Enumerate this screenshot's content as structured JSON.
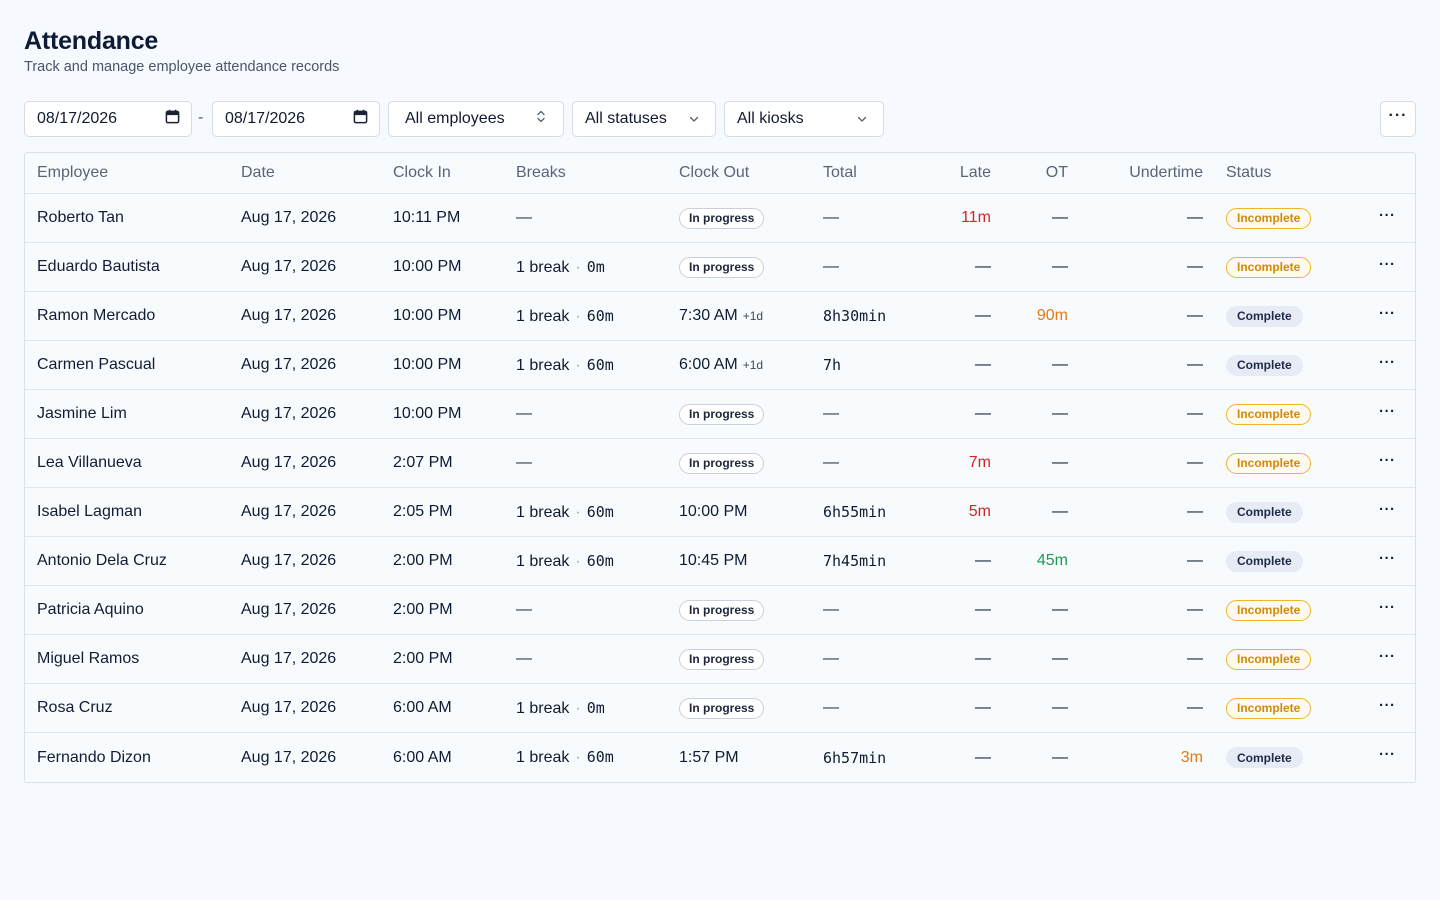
{
  "header": {
    "title": "Attendance",
    "subtitle": "Track and manage employee attendance records"
  },
  "filters": {
    "date_from": "08/17/2026",
    "date_separator": "-",
    "date_to": "08/17/2026",
    "employees": "All employees",
    "statuses": "All statuses",
    "kiosks": "All kiosks",
    "more_label": "···"
  },
  "table": {
    "columns": [
      "Employee",
      "Date",
      "Clock In",
      "Breaks",
      "Clock Out",
      "Total",
      "Late",
      "OT",
      "Undertime",
      "Status"
    ],
    "rows": [
      {
        "employee": "Roberto Tan",
        "date": "Aug 17, 2026",
        "clock_in": "10:11 PM",
        "breaks": null,
        "clock_out": null,
        "total": "—",
        "late": "11m",
        "late_color": "red",
        "ot": "—",
        "ot_color": "",
        "undertime": "—",
        "undertime_color": "",
        "status": "Incomplete"
      },
      {
        "employee": "Eduardo Bautista",
        "date": "Aug 17, 2026",
        "clock_in": "10:00 PM",
        "breaks": {
          "count": "1 break",
          "duration": "0m"
        },
        "clock_out": null,
        "total": "—",
        "late": "—",
        "late_color": "",
        "ot": "—",
        "ot_color": "",
        "undertime": "—",
        "undertime_color": "",
        "status": "Incomplete"
      },
      {
        "employee": "Ramon Mercado",
        "date": "Aug 17, 2026",
        "clock_in": "10:00 PM",
        "breaks": {
          "count": "1 break",
          "duration": "60m"
        },
        "clock_out": {
          "time": "7:30 AM",
          "next_day": "+1d"
        },
        "total": "8h30min",
        "late": "—",
        "late_color": "",
        "ot": "90m",
        "ot_color": "orange",
        "undertime": "—",
        "undertime_color": "",
        "status": "Complete"
      },
      {
        "employee": "Carmen Pascual",
        "date": "Aug 17, 2026",
        "clock_in": "10:00 PM",
        "breaks": {
          "count": "1 break",
          "duration": "60m"
        },
        "clock_out": {
          "time": "6:00 AM",
          "next_day": "+1d"
        },
        "total": "7h",
        "late": "—",
        "late_color": "",
        "ot": "—",
        "ot_color": "",
        "undertime": "—",
        "undertime_color": "",
        "status": "Complete"
      },
      {
        "employee": "Jasmine Lim",
        "date": "Aug 17, 2026",
        "clock_in": "10:00 PM",
        "breaks": null,
        "clock_out": null,
        "total": "—",
        "late": "—",
        "late_color": "",
        "ot": "—",
        "ot_color": "",
        "undertime": "—",
        "undertime_color": "",
        "status": "Incomplete"
      },
      {
        "employee": "Lea Villanueva",
        "date": "Aug 17, 2026",
        "clock_in": "2:07 PM",
        "breaks": null,
        "clock_out": null,
        "total": "—",
        "late": "7m",
        "late_color": "red",
        "ot": "—",
        "ot_color": "",
        "undertime": "—",
        "undertime_color": "",
        "status": "Incomplete"
      },
      {
        "employee": "Isabel Lagman",
        "date": "Aug 17, 2026",
        "clock_in": "2:05 PM",
        "breaks": {
          "count": "1 break",
          "duration": "60m"
        },
        "clock_out": {
          "time": "10:00 PM",
          "next_day": ""
        },
        "total": "6h55min",
        "late": "5m",
        "late_color": "red",
        "ot": "—",
        "ot_color": "",
        "undertime": "—",
        "undertime_color": "",
        "status": "Complete"
      },
      {
        "employee": "Antonio Dela Cruz",
        "date": "Aug 17, 2026",
        "clock_in": "2:00 PM",
        "breaks": {
          "count": "1 break",
          "duration": "60m"
        },
        "clock_out": {
          "time": "10:45 PM",
          "next_day": ""
        },
        "total": "7h45min",
        "late": "—",
        "late_color": "",
        "ot": "45m",
        "ot_color": "green",
        "undertime": "—",
        "undertime_color": "",
        "status": "Complete"
      },
      {
        "employee": "Patricia Aquino",
        "date": "Aug 17, 2026",
        "clock_in": "2:00 PM",
        "breaks": null,
        "clock_out": null,
        "total": "—",
        "late": "—",
        "late_color": "",
        "ot": "—",
        "ot_color": "",
        "undertime": "—",
        "undertime_color": "",
        "status": "Incomplete"
      },
      {
        "employee": "Miguel Ramos",
        "date": "Aug 17, 2026",
        "clock_in": "2:00 PM",
        "breaks": null,
        "clock_out": null,
        "total": "—",
        "late": "—",
        "late_color": "",
        "ot": "—",
        "ot_color": "",
        "undertime": "—",
        "undertime_color": "",
        "status": "Incomplete"
      },
      {
        "employee": "Rosa Cruz",
        "date": "Aug 17, 2026",
        "clock_in": "6:00 AM",
        "breaks": {
          "count": "1 break",
          "duration": "0m"
        },
        "clock_out": null,
        "total": "—",
        "late": "—",
        "late_color": "",
        "ot": "—",
        "ot_color": "",
        "undertime": "—",
        "undertime_color": "",
        "status": "Incomplete"
      },
      {
        "employee": "Fernando Dizon",
        "date": "Aug 17, 2026",
        "clock_in": "6:00 AM",
        "breaks": {
          "count": "1 break",
          "duration": "60m"
        },
        "clock_out": {
          "time": "1:57 PM",
          "next_day": ""
        },
        "total": "6h57min",
        "late": "—",
        "late_color": "",
        "ot": "—",
        "ot_color": "",
        "undertime": "3m",
        "undertime_color": "orange",
        "status": "Complete"
      }
    ],
    "empty_value": "—",
    "in_progress_label": "In progress",
    "row_action_label": "···"
  },
  "colors": {
    "red": "#d42424",
    "orange": "#e27a14",
    "green": "#1e9a55",
    "incomplete": "#cf8a0c",
    "background": "#f6f9fd"
  },
  "icons": {
    "date_picker": "calendar-icon",
    "employees_select": "chevron-up-down-icon",
    "status_select": "chevron-down-icon",
    "kiosk_select": "chevron-down-icon",
    "more": "ellipsis-icon"
  }
}
